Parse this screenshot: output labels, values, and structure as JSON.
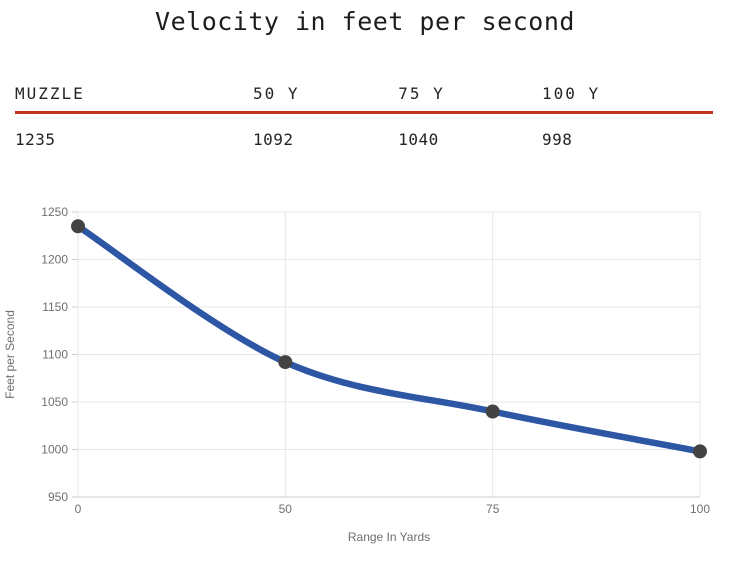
{
  "title": "Velocity in feet per second",
  "table": {
    "columns": [
      "MUZZLE",
      "50 Y",
      "75 Y",
      "100 Y"
    ],
    "values": [
      "1235",
      "1092",
      "1040",
      "998"
    ]
  },
  "chart_data": {
    "type": "line",
    "categories": [
      "0",
      "50",
      "75",
      "100"
    ],
    "values": [
      1235,
      1092,
      1040,
      998
    ],
    "series": [
      {
        "name": "Velocity",
        "values": [
          1235,
          1092,
          1040,
          998
        ]
      }
    ],
    "title": "Velocity in feet per second",
    "xlabel": "Range In Yards",
    "ylabel": "Feet per Second",
    "ylim": [
      950,
      1250
    ],
    "yticks": [
      1250,
      1200,
      1150,
      1100,
      1050,
      1000,
      950
    ],
    "x_axis_type": "category-evenly-spaced",
    "grid": true,
    "legend": "none",
    "line_color": "#2d56a5",
    "point_color": "#434343",
    "grid_color": "#e7e7e7",
    "baseline_color": "#cfcfcf",
    "tick_color": "#cccccc",
    "axis_text_color": "#6f6f6f"
  },
  "colors": {
    "divider_red": "#c23221",
    "title_text": "#1d1d1d",
    "table_text": "#242424",
    "background": "#ffffff"
  }
}
